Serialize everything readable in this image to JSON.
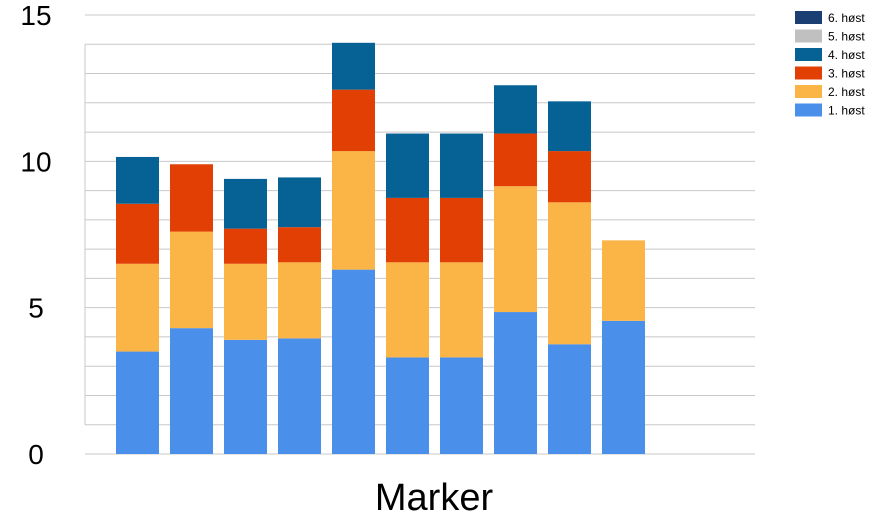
{
  "chart_data": {
    "type": "bar",
    "stacked": true,
    "xlabel": "Marker",
    "ylabel": "",
    "ylim": [
      0,
      15
    ],
    "yticks": [
      "0",
      "5",
      "10",
      "15"
    ],
    "grid": true,
    "legend_position": "top-right",
    "categories": [
      "",
      "",
      "",
      "",
      "",
      "",
      "",
      "",
      "",
      ""
    ],
    "series": [
      {
        "name": "1. høst",
        "color": "#4a8fea",
        "values": [
          3.5,
          4.3,
          3.9,
          3.95,
          6.3,
          3.3,
          3.3,
          4.85,
          3.75,
          4.55
        ]
      },
      {
        "name": "2. høst",
        "color": "#fbb446",
        "values": [
          3.0,
          3.3,
          2.6,
          2.6,
          4.05,
          3.25,
          3.25,
          4.3,
          4.85,
          2.75
        ]
      },
      {
        "name": "3. høst",
        "color": "#e13f04",
        "values": [
          2.05,
          2.3,
          1.2,
          1.2,
          2.1,
          2.2,
          2.2,
          1.8,
          1.75,
          0
        ]
      },
      {
        "name": "4. høst",
        "color": "#066294",
        "values": [
          1.6,
          0,
          1.7,
          1.7,
          1.6,
          2.2,
          2.2,
          1.65,
          1.7,
          0
        ]
      },
      {
        "name": "5. høst",
        "color": "#c0c0c0",
        "values": [
          0,
          0,
          0,
          0,
          0,
          0,
          0,
          0,
          0,
          0
        ]
      },
      {
        "name": "6. høst",
        "color": "#1b3f72",
        "values": [
          0,
          0,
          0,
          0,
          0,
          0,
          0,
          0,
          0,
          0
        ]
      }
    ]
  }
}
